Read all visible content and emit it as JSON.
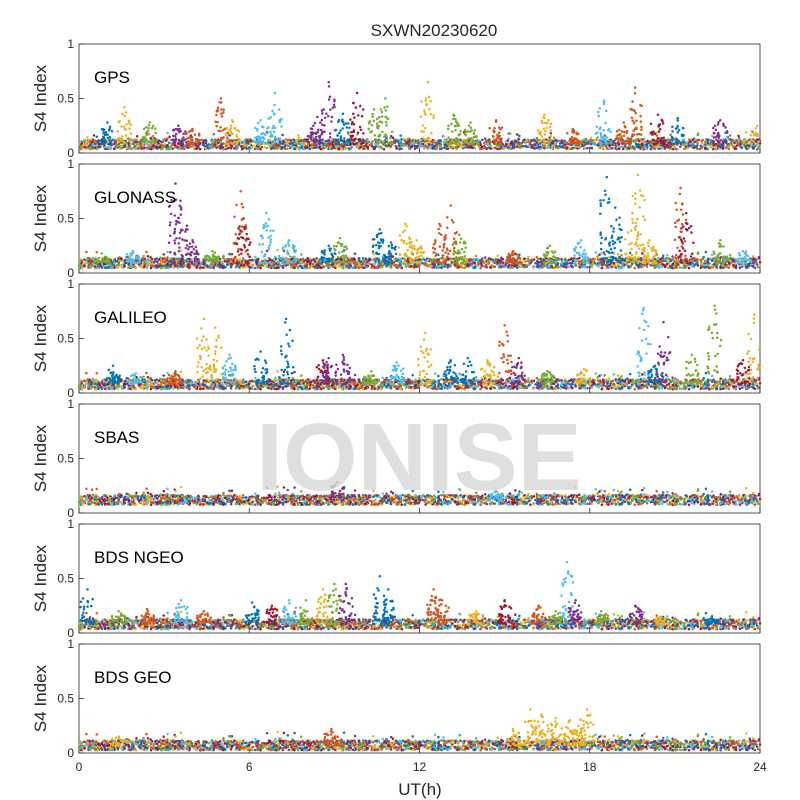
{
  "figure": {
    "title": "SXWN20230620",
    "xlabel": "UT(h)",
    "watermark": "IONISE",
    "colors": [
      "#0072BD",
      "#D95319",
      "#EDB120",
      "#7E2F8E",
      "#77AC30",
      "#4DBEEE",
      "#A2142F"
    ]
  },
  "chart_data": [
    {
      "type": "scatter",
      "title": "GPS",
      "ylabel": "S4 Index",
      "xlim": [
        0,
        24
      ],
      "ylim": [
        0,
        1
      ],
      "xticks": [
        0,
        6,
        12,
        18,
        24
      ],
      "yticks": [
        0,
        0.5,
        1
      ],
      "baseline": 0.08,
      "spikes": [
        [
          1.0,
          0.28,
          0
        ],
        [
          1.6,
          0.42,
          2
        ],
        [
          2.5,
          0.28,
          4
        ],
        [
          3.5,
          0.25,
          3
        ],
        [
          4.0,
          0.22,
          1
        ],
        [
          5.0,
          0.5,
          1
        ],
        [
          5.4,
          0.3,
          2
        ],
        [
          6.4,
          0.3,
          5
        ],
        [
          6.9,
          0.55,
          5
        ],
        [
          8.4,
          0.33,
          3
        ],
        [
          8.8,
          0.65,
          3
        ],
        [
          9.3,
          0.36,
          0
        ],
        [
          9.8,
          0.55,
          6
        ],
        [
          10.4,
          0.4,
          4
        ],
        [
          10.8,
          0.5,
          4
        ],
        [
          12.3,
          0.65,
          2
        ],
        [
          13.2,
          0.35,
          4
        ],
        [
          13.8,
          0.28,
          4
        ],
        [
          14.7,
          0.3,
          1
        ],
        [
          16.4,
          0.35,
          2
        ],
        [
          17.4,
          0.22,
          1
        ],
        [
          18.5,
          0.48,
          5
        ],
        [
          19.2,
          0.28,
          1
        ],
        [
          19.6,
          0.6,
          1
        ],
        [
          20.4,
          0.35,
          6
        ],
        [
          21.1,
          0.32,
          0
        ],
        [
          22.6,
          0.3,
          3
        ],
        [
          23.9,
          0.25,
          2
        ]
      ]
    },
    {
      "type": "scatter",
      "title": "GLONASS",
      "ylabel": "S4 Index",
      "xlim": [
        0,
        24
      ],
      "ylim": [
        0,
        1
      ],
      "xticks": [
        0,
        6,
        12,
        18,
        24
      ],
      "yticks": [
        0,
        0.5,
        1
      ],
      "baseline": 0.09,
      "spikes": [
        [
          0.8,
          0.18,
          4
        ],
        [
          1.9,
          0.2,
          5
        ],
        [
          3.4,
          0.82,
          3
        ],
        [
          3.6,
          0.6,
          3
        ],
        [
          4.0,
          0.3,
          3
        ],
        [
          4.7,
          0.2,
          4
        ],
        [
          5.7,
          0.75,
          1
        ],
        [
          5.8,
          0.5,
          6
        ],
        [
          6.6,
          0.55,
          5
        ],
        [
          7.4,
          0.3,
          5
        ],
        [
          8.8,
          0.25,
          0
        ],
        [
          9.2,
          0.32,
          4
        ],
        [
          10.6,
          0.4,
          0
        ],
        [
          11.0,
          0.28,
          0
        ],
        [
          11.5,
          0.45,
          2
        ],
        [
          11.9,
          0.3,
          2
        ],
        [
          12.7,
          0.45,
          1
        ],
        [
          13.1,
          0.62,
          1
        ],
        [
          13.4,
          0.35,
          4
        ],
        [
          15.3,
          0.2,
          1
        ],
        [
          16.6,
          0.25,
          4
        ],
        [
          17.7,
          0.3,
          5
        ],
        [
          18.6,
          0.88,
          0
        ],
        [
          18.9,
          0.6,
          0
        ],
        [
          19.5,
          0.55,
          2
        ],
        [
          19.7,
          0.9,
          2
        ],
        [
          20.1,
          0.3,
          2
        ],
        [
          21.2,
          0.78,
          1
        ],
        [
          21.4,
          0.55,
          6
        ],
        [
          22.6,
          0.3,
          4
        ],
        [
          23.4,
          0.2,
          5
        ]
      ]
    },
    {
      "type": "scatter",
      "title": "GALILEO",
      "ylabel": "S4 Index",
      "xlim": [
        0,
        24
      ],
      "ylim": [
        0,
        1
      ],
      "xticks": [
        0,
        6,
        12,
        18,
        24
      ],
      "yticks": [
        0,
        0.5,
        1
      ],
      "baseline": 0.08,
      "spikes": [
        [
          1.2,
          0.25,
          0
        ],
        [
          2.0,
          0.18,
          5
        ],
        [
          3.4,
          0.2,
          1
        ],
        [
          4.4,
          0.68,
          2
        ],
        [
          4.8,
          0.6,
          2
        ],
        [
          5.3,
          0.35,
          5
        ],
        [
          6.4,
          0.38,
          0
        ],
        [
          7.3,
          0.68,
          0
        ],
        [
          8.6,
          0.3,
          6
        ],
        [
          8.8,
          0.32,
          3
        ],
        [
          9.3,
          0.35,
          3
        ],
        [
          10.3,
          0.2,
          4
        ],
        [
          11.2,
          0.28,
          5
        ],
        [
          12.2,
          0.55,
          2
        ],
        [
          13.1,
          0.3,
          0
        ],
        [
          13.7,
          0.32,
          0
        ],
        [
          14.4,
          0.3,
          2
        ],
        [
          15.0,
          0.62,
          1
        ],
        [
          15.5,
          0.32,
          3
        ],
        [
          16.5,
          0.2,
          4
        ],
        [
          17.8,
          0.22,
          2
        ],
        [
          19.9,
          0.78,
          5
        ],
        [
          20.3,
          0.25,
          0
        ],
        [
          20.6,
          0.65,
          3
        ],
        [
          21.6,
          0.35,
          4
        ],
        [
          22.4,
          0.8,
          4
        ],
        [
          23.4,
          0.3,
          6
        ],
        [
          23.8,
          0.72,
          2
        ]
      ]
    },
    {
      "type": "scatter",
      "title": "SBAS",
      "ylabel": "S4 Index",
      "xlim": [
        0,
        24
      ],
      "ylim": [
        0,
        1
      ],
      "xticks": [
        0,
        6,
        12,
        18,
        24
      ],
      "yticks": [
        0,
        0.5,
        1
      ],
      "baseline": 0.12,
      "spikes": [
        [
          9.1,
          0.28,
          3
        ],
        [
          14.7,
          0.2,
          5
        ]
      ]
    },
    {
      "type": "scatter",
      "title": "BDS NGEO",
      "ylabel": "S4 Index",
      "xlim": [
        0,
        24
      ],
      "ylim": [
        0,
        1
      ],
      "xticks": [
        0,
        6,
        12,
        18,
        24
      ],
      "yticks": [
        0,
        0.5,
        1
      ],
      "baseline": 0.08,
      "spikes": [
        [
          0.3,
          0.4,
          0
        ],
        [
          1.4,
          0.2,
          4
        ],
        [
          2.4,
          0.22,
          1
        ],
        [
          3.6,
          0.3,
          5
        ],
        [
          4.4,
          0.2,
          1
        ],
        [
          6.1,
          0.28,
          0
        ],
        [
          6.8,
          0.25,
          6
        ],
        [
          7.4,
          0.3,
          5
        ],
        [
          8.0,
          0.3,
          4
        ],
        [
          8.6,
          0.4,
          2
        ],
        [
          9.0,
          0.45,
          4
        ],
        [
          9.4,
          0.45,
          3
        ],
        [
          10.6,
          0.52,
          0
        ],
        [
          10.9,
          0.4,
          0
        ],
        [
          12.5,
          0.4,
          1
        ],
        [
          12.8,
          0.3,
          1
        ],
        [
          14.0,
          0.2,
          2
        ],
        [
          15.0,
          0.3,
          6
        ],
        [
          16.2,
          0.25,
          1
        ],
        [
          16.8,
          0.2,
          4
        ],
        [
          17.2,
          0.65,
          5
        ],
        [
          17.5,
          0.3,
          3
        ],
        [
          18.4,
          0.2,
          4
        ],
        [
          19.6,
          0.25,
          3
        ],
        [
          20.5,
          0.15,
          2
        ],
        [
          22.3,
          0.15,
          0
        ]
      ]
    },
    {
      "type": "scatter",
      "title": "BDS GEO",
      "ylabel": "S4 Index",
      "xlim": [
        0,
        24
      ],
      "ylim": [
        0,
        1
      ],
      "xticks": [
        0,
        6,
        12,
        18,
        24
      ],
      "yticks": [
        0,
        0.5,
        1
      ],
      "baseline": 0.07,
      "spikes": [
        [
          1.4,
          0.15,
          2
        ],
        [
          8.9,
          0.22,
          1
        ],
        [
          15.3,
          0.22,
          2
        ],
        [
          15.9,
          0.4,
          2
        ],
        [
          16.3,
          0.35,
          2
        ],
        [
          16.8,
          0.32,
          2
        ],
        [
          17.3,
          0.3,
          2
        ],
        [
          17.6,
          0.25,
          2
        ],
        [
          17.9,
          0.4,
          2
        ]
      ]
    }
  ]
}
